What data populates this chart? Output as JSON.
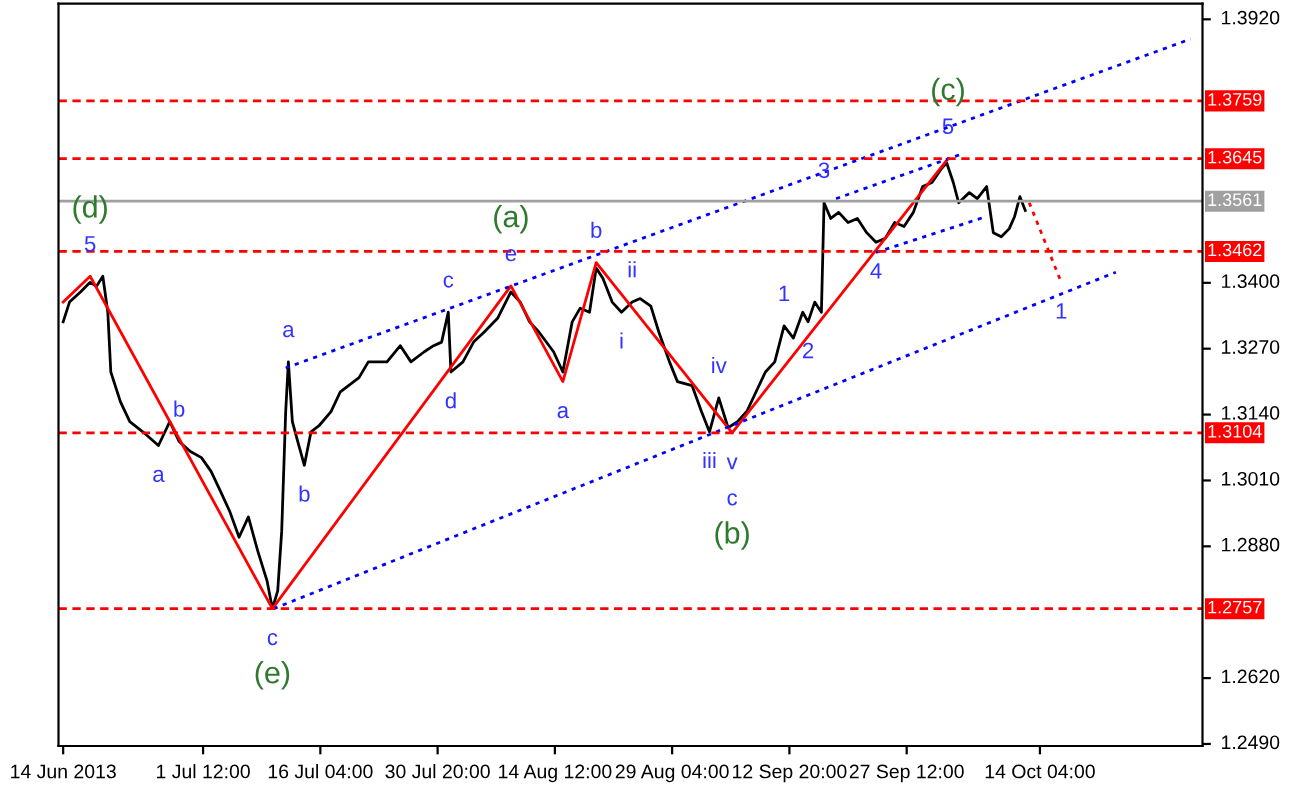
{
  "chart_data": {
    "type": "line",
    "x": [
      "2013-06-14T00:00",
      "2013-06-14T19:00",
      "2013-06-16T04:00",
      "2013-06-17T09:00",
      "2013-06-18T04:00",
      "2013-06-18T23:00",
      "2013-06-19T14:00",
      "2013-06-19T23:00",
      "2013-06-21T04:00",
      "2013-06-22T08:00",
      "2013-06-23T23:00",
      "2013-06-25T22:00",
      "2013-06-27T08:00",
      "2013-06-28T12:00",
      "2013-06-29T22:00",
      "2013-07-01T07:00",
      "2013-07-02T12:00",
      "2013-07-03T16:00",
      "2013-07-04T20:00",
      "2013-07-06T00:00",
      "2013-07-07T04:00",
      "2013-07-08T08:00",
      "2013-07-09T12:00",
      "2013-07-10T04:00",
      "2013-07-10T20:00",
      "2013-07-11T08:00",
      "2013-07-11T20:00",
      "2013-07-12T04:00",
      "2013-07-12T16:00",
      "2013-07-13T08:00",
      "2013-07-14T04:00",
      "2013-07-15T00:00",
      "2013-07-16T00:00",
      "2013-07-17T12:00",
      "2013-07-18T16:00",
      "2013-07-21T00:00",
      "2013-07-22T04:00",
      "2013-07-24T12:00",
      "2013-07-26T04:00",
      "2013-07-27T12:00",
      "2013-07-29T04:00",
      "2013-07-30T08:00",
      "2013-07-31T08:00",
      "2013-08-01T04:00",
      "2013-08-01T12:00",
      "2013-08-03T00:00",
      "2013-08-04T08:00",
      "2013-08-05T16:00",
      "2013-08-07T08:00",
      "2013-08-09T00:00",
      "2013-08-10T04:00",
      "2013-08-11T08:00",
      "2013-08-12T12:00",
      "2013-08-14T08:00",
      "2013-08-15T12:00",
      "2013-08-16T16:00",
      "2013-08-17T16:00",
      "2013-08-18T20:00",
      "2013-08-19T16:00",
      "2013-08-20T12:00",
      "2013-08-21T16:00",
      "2013-08-22T20:00",
      "2013-08-24T04:00",
      "2013-08-25T04:00",
      "2013-08-26T12:00",
      "2013-08-27T12:00",
      "2013-08-28T20:00",
      "2013-08-29T20:00",
      "2013-08-31T16:00",
      "2013-09-01T20:00",
      "2013-09-02T20:00",
      "2013-09-04T00:00",
      "2013-09-05T04:00",
      "2013-09-06T08:00",
      "2013-09-07T12:00",
      "2013-09-08T16:00",
      "2013-09-09T20:00",
      "2013-09-11T00:00",
      "2013-09-12T04:00",
      "2013-09-13T08:00",
      "2013-09-14T12:00",
      "2013-09-15T04:00",
      "2013-09-16T00:00",
      "2013-09-16T20:00",
      "2013-09-17T04:00",
      "2013-09-18T00:00",
      "2013-09-19T00:00",
      "2013-09-20T04:00",
      "2013-09-21T08:00",
      "2013-09-22T12:00",
      "2013-09-23T16:00",
      "2013-09-24T20:00",
      "2013-09-26T00:00",
      "2013-09-27T04:00",
      "2013-09-28T08:00",
      "2013-09-29T12:00",
      "2013-09-30T16:00",
      "2013-10-01T20:00",
      "2013-10-02T12:00",
      "2013-10-03T08:00",
      "2013-10-04T00:00",
      "2013-10-05T08:00",
      "2013-10-06T08:00",
      "2013-10-07T12:00",
      "2013-10-08T08:00",
      "2013-10-09T08:00",
      "2013-10-10T08:00",
      "2013-10-11T00:00",
      "2013-10-11T16:00",
      "2013-10-12T08:00"
    ],
    "series": [
      {
        "color": "#000000",
        "values": [
          1.3323,
          1.3362,
          1.3382,
          1.3401,
          1.3393,
          1.3413,
          1.3342,
          1.3224,
          1.3165,
          1.3126,
          1.3106,
          1.3079,
          1.3126,
          1.3087,
          1.3067,
          1.3055,
          1.3028,
          1.2989,
          1.2949,
          1.2898,
          1.2938,
          1.2871,
          1.2812,
          1.2757,
          1.2792,
          1.291,
          1.3146,
          1.3244,
          1.3126,
          1.3087,
          1.304,
          1.3106,
          1.3118,
          1.3146,
          1.3185,
          1.3213,
          1.3244,
          1.3244,
          1.3276,
          1.3244,
          1.3264,
          1.3276,
          1.3283,
          1.3342,
          1.3224,
          1.3244,
          1.3283,
          1.3303,
          1.333,
          1.3382,
          1.3362,
          1.3323,
          1.3303,
          1.3264,
          1.3224,
          1.3323,
          1.335,
          1.3342,
          1.3429,
          1.3409,
          1.3362,
          1.3342,
          1.3362,
          1.3369,
          1.3354,
          1.3303,
          1.3244,
          1.3205,
          1.3197,
          1.3146,
          1.3106,
          1.3173,
          1.3114,
          1.3126,
          1.3146,
          1.3185,
          1.3224,
          1.3244,
          1.3315,
          1.3291,
          1.3342,
          1.3323,
          1.3362,
          1.3342,
          1.3558,
          1.3527,
          1.3539,
          1.3519,
          1.3527,
          1.3499,
          1.348,
          1.3488,
          1.3519,
          1.3511,
          1.3539,
          1.359,
          1.3598,
          1.3625,
          1.3637,
          1.3598,
          1.3558,
          1.3578,
          1.3566,
          1.359,
          1.3499,
          1.3491,
          1.3507,
          1.3531,
          1.357,
          1.3543
        ]
      },
      {
        "color": "#ff0000",
        "line_style": "solid",
        "x": [
          "2013-06-14T00:00",
          "2013-06-17T09:00",
          "2013-07-10T04:00",
          "2013-08-09T00:00",
          "2013-08-15T12:00",
          "2013-08-19T16:00",
          "2013-09-05T16:00",
          "2013-10-02T16:00"
        ],
        "values": [
          1.3362,
          1.3413,
          1.2757,
          1.3394,
          1.3205,
          1.344,
          1.3104,
          1.3645
        ]
      },
      {
        "color": "#ff0000",
        "line_style": "dotted",
        "x": [
          "2013-10-12T20:00",
          "2013-10-16T20:00"
        ],
        "values": [
          1.3558,
          1.3401
        ]
      },
      {
        "color": "#0000ff",
        "line_style": "dotted",
        "x": [
          "2013-07-11T20:00",
          "2013-11-02T00:00"
        ],
        "values": [
          1.3232,
          1.3881
        ]
      },
      {
        "color": "#0000ff",
        "line_style": "dotted",
        "x": [
          "2013-07-10T08:00",
          "2013-10-23T16:00"
        ],
        "values": [
          1.2757,
          1.3421
        ]
      },
      {
        "color": "#0000ff",
        "line_style": "dotted",
        "x": [
          "2013-09-18T16:00",
          "2013-10-04T04:00"
        ],
        "values": [
          1.3566,
          1.3653
        ]
      },
      {
        "color": "#0000ff",
        "line_style": "dotted",
        "x": [
          "2013-09-23T16:00",
          "2013-10-07T12:00"
        ],
        "values": [
          1.346,
          1.3531
        ]
      }
    ],
    "xlim": [
      "2013-06-13T10:00",
      "2013-11-03T12:00"
    ],
    "xticks": [
      {
        "value": "2013-06-14T00:00",
        "label": "14 Jun 2013"
      },
      {
        "value": "2013-07-01T12:00",
        "label": "1 Jul 12:00"
      },
      {
        "value": "2013-07-16T04:00",
        "label": "16 Jul 04:00"
      },
      {
        "value": "2013-07-30T20:00",
        "label": "30 Jul 20:00"
      },
      {
        "value": "2013-08-14T12:00",
        "label": "14 Aug 12:00"
      },
      {
        "value": "2013-08-29T04:00",
        "label": "29 Aug 04:00"
      },
      {
        "value": "2013-09-12T20:00",
        "label": "12 Sep 20:00"
      },
      {
        "value": "2013-09-27T12:00",
        "label": "27 Sep 12:00"
      },
      {
        "value": "2013-10-14T04:00",
        "label": "14 Oct 04:00"
      }
    ],
    "ylim": [
      1.2486,
      1.3951
    ],
    "yticks": [
      {
        "value": 1.392,
        "label": "1.3920"
      },
      {
        "value": 1.34,
        "label": "1.3400"
      },
      {
        "value": 1.327,
        "label": "1.3270"
      },
      {
        "value": 1.314,
        "label": "1.3140"
      },
      {
        "value": 1.301,
        "label": "1.3010"
      },
      {
        "value": 1.288,
        "label": "1.2880"
      },
      {
        "value": 1.262,
        "label": "1.2620"
      },
      {
        "value": 1.249,
        "label": "1.2490"
      }
    ],
    "ref_lines": [
      {
        "axis": "y",
        "value": 1.3759,
        "label": "1.3759",
        "color": "#ff0000",
        "line_style": "dashed"
      },
      {
        "axis": "y",
        "value": 1.3645,
        "label": "1.3645",
        "color": "#ff0000",
        "line_style": "dashed"
      },
      {
        "axis": "y",
        "value": 1.3561,
        "label": "1.3561",
        "color": "#a0a0a0",
        "line_style": "solid"
      },
      {
        "axis": "y",
        "value": 1.3462,
        "label": "1.3462",
        "color": "#ff0000",
        "line_style": "dashed"
      },
      {
        "axis": "y",
        "value": 1.3104,
        "label": "1.3104",
        "color": "#ff0000",
        "line_style": "dashed"
      },
      {
        "axis": "y",
        "value": 1.2757,
        "label": "1.2757",
        "color": "#ff0000",
        "line_style": "dashed"
      }
    ],
    "annotations": [
      {
        "text": "5",
        "x": "2013-06-17T09:00",
        "y": 1.3413
      },
      {
        "text": "(d)",
        "x": "2013-06-17T09:00",
        "y": 1.3413
      },
      {
        "text": "b",
        "x": "2013-06-28T12:00",
        "y": 1.3087
      },
      {
        "text": "a",
        "x": "2013-06-25T22:00",
        "y": 1.3079
      },
      {
        "text": "c",
        "x": "2013-07-10T04:00",
        "y": 1.2757
      },
      {
        "text": "(e)",
        "x": "2013-07-10T04:00",
        "y": 1.2757
      },
      {
        "text": "a",
        "x": "2013-07-12T04:00",
        "y": 1.3244
      },
      {
        "text": "b",
        "x": "2013-07-14T04:00",
        "y": 1.304
      },
      {
        "text": "c",
        "x": "2013-08-01T04:00",
        "y": 1.3342
      },
      {
        "text": "d",
        "x": "2013-08-01T12:00",
        "y": 1.3224
      },
      {
        "text": "e",
        "x": "2013-08-09T00:00",
        "y": 1.3394
      },
      {
        "text": "(a)",
        "x": "2013-08-09T00:00",
        "y": 1.3394
      },
      {
        "text": "a",
        "x": "2013-08-15T12:00",
        "y": 1.3205
      },
      {
        "text": "b",
        "x": "2013-08-19T16:00",
        "y": 1.344
      },
      {
        "text": "ii",
        "x": "2013-08-24T04:00",
        "y": 1.3362
      },
      {
        "text": "i",
        "x": "2013-08-22T20:00",
        "y": 1.3342
      },
      {
        "text": "iv",
        "x": "2013-09-04T00:00",
        "y": 1.3173
      },
      {
        "text": "iii",
        "x": "2013-09-02T20:00",
        "y": 1.3106
      },
      {
        "text": "v",
        "x": "2013-09-05T16:00",
        "y": 1.3104
      },
      {
        "text": "c",
        "x": "2013-09-05T16:00",
        "y": 1.3104
      },
      {
        "text": "(b)",
        "x": "2013-09-05T16:00",
        "y": 1.3104
      },
      {
        "text": "1",
        "x": "2013-09-12T04:00",
        "y": 1.3315
      },
      {
        "text": "2",
        "x": "2013-09-15T04:00",
        "y": 1.3323
      },
      {
        "text": "3",
        "x": "2013-09-17T04:00",
        "y": 1.3558
      },
      {
        "text": "4",
        "x": "2013-09-23T16:00",
        "y": 1.348
      },
      {
        "text": "5",
        "x": "2013-10-02T16:00",
        "y": 1.3645
      },
      {
        "text": "(c)",
        "x": "2013-10-02T16:00",
        "y": 1.3645
      },
      {
        "text": "1",
        "x": "2013-10-16T20:00",
        "y": 1.3401
      }
    ],
    "grid": false,
    "legend": false
  }
}
